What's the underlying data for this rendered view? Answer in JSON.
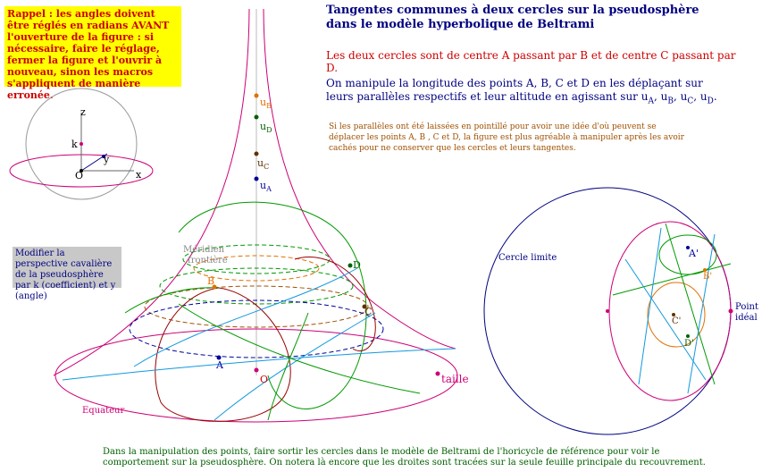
{
  "warning_box": {
    "text": "Rappel : les angles doivent être réglés en radians AVANT l'ouverture de la figure : si nécessaire, faire le réglage, fermer la figure et l'ouvrir à nouveau, sinon les macros s'appliquent de manière erronée."
  },
  "title": {
    "line1": "Tangentes communes à deux cercles sur la pseudosphère",
    "line2": "dans le modèle hyperbolique de Beltrami"
  },
  "intro": "Les deux cercles sont de centre A passant par B et de centre C passant par D.",
  "manipulation": {
    "line1": "On manipule la longitude des points A, B, C et D en les déplaçant sur",
    "line2_prefix": "leurs parallèles respectifs et leur altitude en agissant sur",
    "u_symbol": "u",
    "subs": [
      "A",
      "B",
      "C",
      "D"
    ]
  },
  "note": "Si les parallèles ont été laissées en pointillé pour avoir une idée d'où peuvent se déplacer les points A, B , C et D, la figure est plus agréable à manipuler après les avoir cachés pour ne conserver que les cercles et leurs tangentes.",
  "perspective_box": "Modifier la perspective cavalière de la pseudosphère par k (coefficient) et y (angle)",
  "axes_labels": {
    "z": "z",
    "k": "k",
    "y": "y",
    "x": "x",
    "O": "O"
  },
  "pseudosphere_labels": {
    "uB": "u",
    "uB_sub": "B",
    "uD": "u",
    "uD_sub": "D",
    "uC": "u",
    "uC_sub": "C",
    "uA": "u",
    "uA_sub": "A",
    "meridien": "Méridien",
    "frontiere": "frontière",
    "B": "B",
    "D": "D",
    "C": "C",
    "A": "A",
    "O": "O",
    "taille": "taille",
    "equateur": "Equateur"
  },
  "beltrami_labels": {
    "cercle_limite": "Cercle limite",
    "point_ideal_1": "Point",
    "point_ideal_2": "idéal",
    "A_prime": "A'",
    "B_prime": "B'",
    "C_prime": "C'",
    "D_prime": "D'"
  },
  "bottom_text": "Dans la manipulation des points, faire sortir les cercles dans le modèle de Beltrami de l'horicycle de référence pour voir le comportement sur la pseudosphère. On notera là encore que les droites sont tracées sur la seule feuille principale du recouvrement.",
  "colors": {
    "navy": "#000080",
    "red": "#cc0000",
    "magenta": "#cc0077",
    "green": "#009900",
    "orange": "#e07000",
    "blue": "#000099",
    "cyan": "#1199dd",
    "darkred": "#990000",
    "yellow": "#ffff00"
  }
}
